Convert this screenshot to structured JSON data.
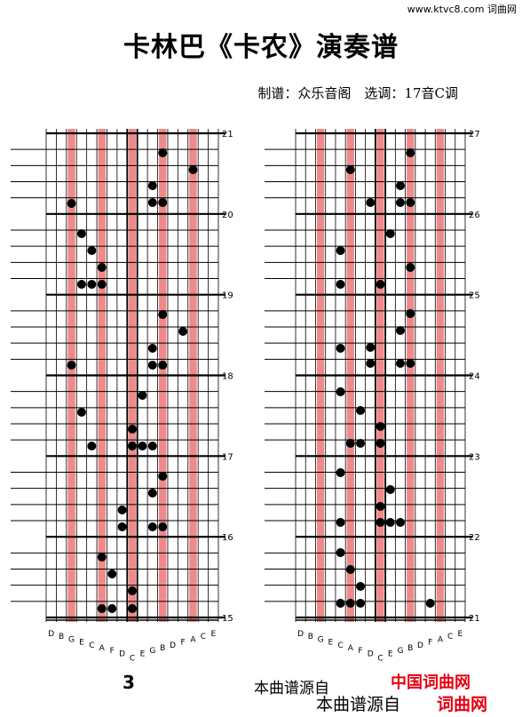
{
  "header": {
    "site": "www.ktvc8.com 词曲网",
    "title": "卡林巴《卡农》演奏谱",
    "meta": "制谱：众乐音阁　选调：17音C调"
  },
  "score": {
    "tine_labels": [
      "D",
      "B",
      "G",
      "E",
      "C",
      "A",
      "F",
      "D",
      "C",
      "E",
      "G",
      "B",
      "D",
      "F",
      "A",
      "C",
      "E"
    ],
    "red_tines": [
      2,
      5,
      8,
      11,
      14
    ],
    "left": {
      "measures": [
        "21",
        "20",
        "19",
        "18",
        "17",
        "16",
        "15"
      ]
    },
    "right": {
      "measures": [
        "27",
        "26",
        "25",
        "24",
        "23",
        "22",
        "21"
      ]
    }
  },
  "footer": {
    "page": "3",
    "source_a": "本曲谱源自",
    "site_a": "中国词曲网",
    "source_b": "本曲谱源自",
    "site_b": "词曲网"
  }
}
